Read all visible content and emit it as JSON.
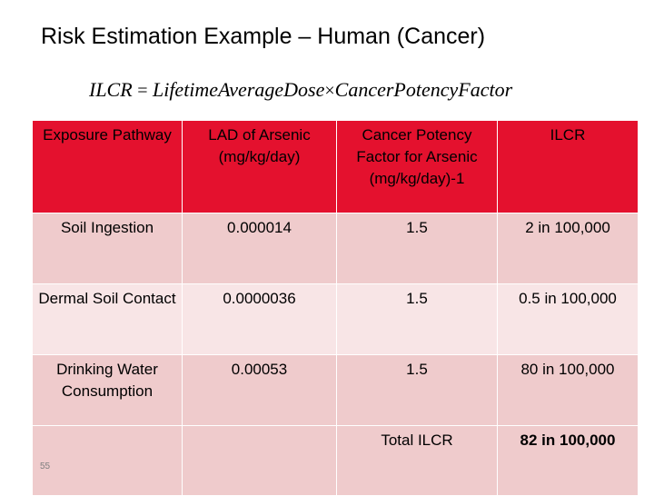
{
  "title": "Risk Estimation Example – Human (Cancer)",
  "formula": {
    "lhs": "ILCR",
    "eq": "=",
    "term1": "LifetimeAverageDose",
    "times": "×",
    "term2": "CancerPotencyFactor"
  },
  "table": {
    "headers": [
      "Exposure Pathway",
      "LAD of Arsenic (mg/kg/day)",
      "Cancer Potency Factor for Arsenic (mg/kg/day)-1",
      "ILCR"
    ],
    "rows": [
      [
        "Soil Ingestion",
        "0.000014",
        "1.5",
        "2 in 100,000"
      ],
      [
        "Dermal Soil Contact",
        "0.0000036",
        "1.5",
        "0.5 in 100,000"
      ],
      [
        "Drinking Water Consumption",
        "0.00053",
        "1.5",
        "80 in 100,000"
      ]
    ],
    "total_label": "Total ILCR",
    "total_value": "82 in 100,000"
  },
  "slide_number": "55",
  "colors": {
    "header_bg": "#e4112e",
    "row_dark": "#efcbcc",
    "row_light": "#f8e5e6"
  }
}
